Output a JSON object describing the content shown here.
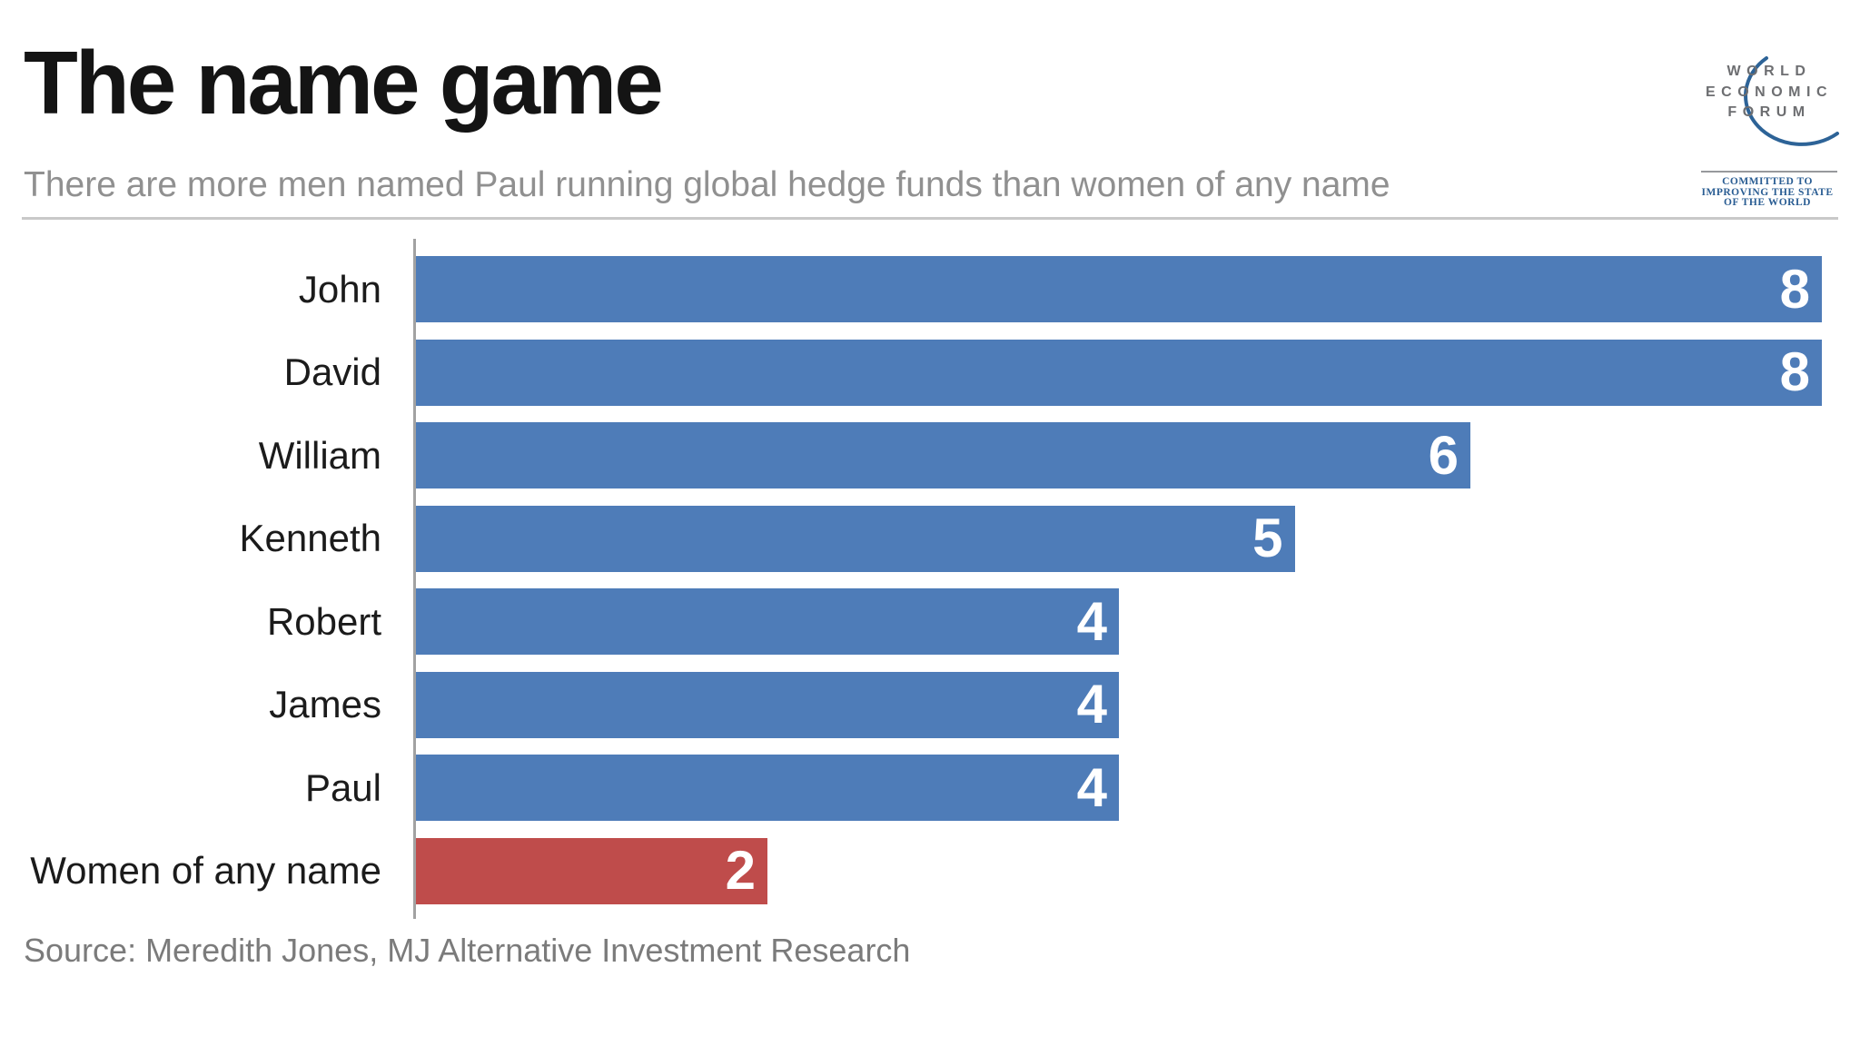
{
  "header": {
    "title": "The name game",
    "subtitle": "There are more men named Paul running global hedge funds than women of any name"
  },
  "logo": {
    "org_lines": [
      "WORLD",
      "ECONOMIC",
      "FORUM"
    ],
    "tagline_lines": [
      "COMMITTED TO",
      "IMPROVING THE STATE",
      "OF THE WORLD"
    ],
    "text_color": "#6d6e71",
    "tagline_color": "#2a5d93",
    "arc_color": "#2d6397"
  },
  "chart_data": {
    "type": "bar",
    "orientation": "horizontal",
    "title": "The name game",
    "categories": [
      "John",
      "David",
      "William",
      "Kenneth",
      "Robert",
      "James",
      "Paul",
      "Women of any name"
    ],
    "values": [
      8,
      8,
      6,
      5,
      4,
      4,
      4,
      2
    ],
    "value_labels": [
      "8",
      "8",
      "6",
      "5",
      "4",
      "4",
      "4",
      "2"
    ],
    "xlim": [
      0,
      8
    ],
    "grid": false,
    "legend": false,
    "bar_color_default": "#4e7cb8",
    "bar_color_highlight": "#bf4c4b",
    "highlight_index": 7,
    "value_label_color": "#ffffff",
    "axis_color": "#a2a2a2"
  },
  "source_note": "Source: Meredith Jones, MJ Alternative Investment Research"
}
